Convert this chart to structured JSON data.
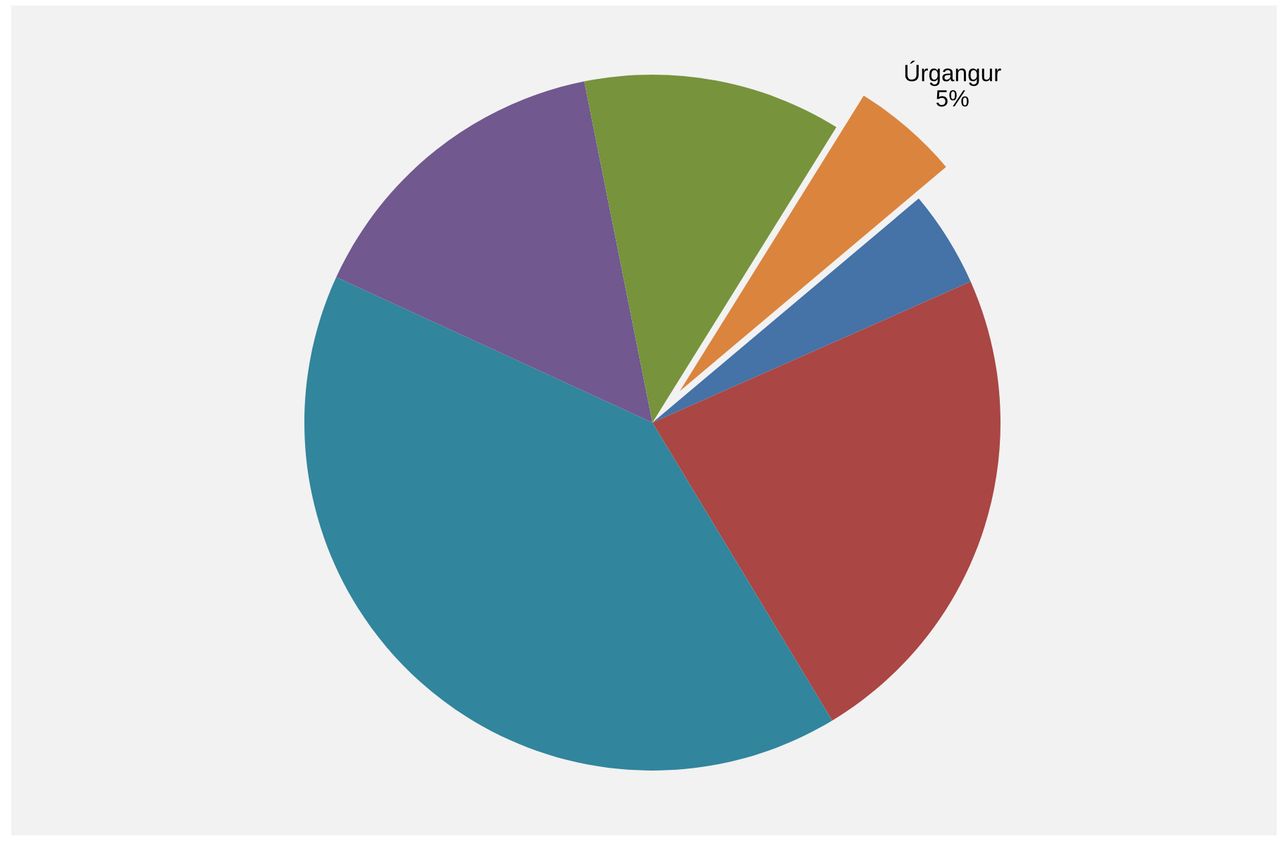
{
  "chart_data": {
    "type": "pie",
    "categories": [
      "Úrgangur",
      null,
      null,
      null,
      null,
      null
    ],
    "values": [
      5,
      4.5,
      23,
      40.5,
      15,
      12
    ],
    "colors": [
      "#db843d",
      "#4572a7",
      "#aa4643",
      "#31859c",
      "#71588f",
      "#77933c"
    ],
    "value_labels": [
      "5%",
      null,
      null,
      null,
      null,
      null
    ]
  }
}
